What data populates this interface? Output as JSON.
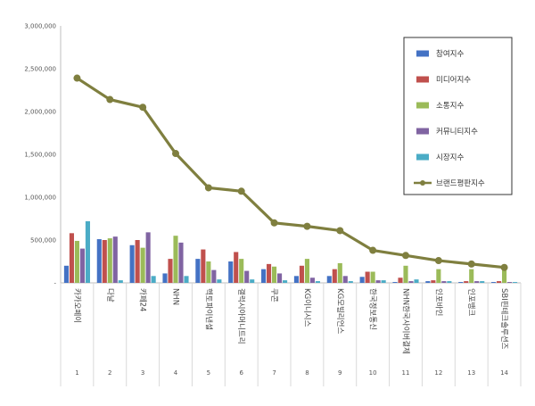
{
  "chart_data": {
    "type": "bar",
    "title": "",
    "xlabel": "",
    "ylabel": "",
    "ylim": [
      0,
      3000000
    ],
    "yticks": [
      0,
      500000,
      1000000,
      1500000,
      2000000,
      2500000,
      3000000
    ],
    "ytick_labels": [
      "-",
      "500,000",
      "1,000,000",
      "1,500,000",
      "2,000,000",
      "2,500,000",
      "3,000,000"
    ],
    "grid": false,
    "legend_position": "top-right",
    "categories": [
      "카카오페이",
      "다날",
      "카페24",
      "NHN",
      "헥토파이낸셜",
      "갤럭시아머니트리",
      "쿠콘",
      "KG이니시스",
      "KG모빌리언스",
      "한국정보통신",
      "NHN한국사이버결제",
      "인포바인",
      "인포뱅크",
      "SBI핀테크솔루션즈"
    ],
    "category_numbers": [
      "1",
      "2",
      "3",
      "4",
      "5",
      "6",
      "7",
      "8",
      "9",
      "10",
      "11",
      "12",
      "13",
      "14"
    ],
    "series": [
      {
        "name": "참여지수",
        "color": "#4472c4",
        "chart_type": "bar",
        "values": [
          200000,
          510000,
          440000,
          110000,
          280000,
          250000,
          160000,
          80000,
          80000,
          70000,
          10000,
          20000,
          10000,
          10000
        ]
      },
      {
        "name": "미디어지수",
        "color": "#c0504d",
        "chart_type": "bar",
        "values": [
          580000,
          500000,
          500000,
          280000,
          390000,
          360000,
          220000,
          200000,
          160000,
          130000,
          60000,
          30000,
          20000,
          20000
        ]
      },
      {
        "name": "소통지수",
        "color": "#9bbb59",
        "chart_type": "bar",
        "values": [
          490000,
          520000,
          410000,
          550000,
          250000,
          280000,
          190000,
          280000,
          230000,
          130000,
          200000,
          160000,
          160000,
          170000
        ]
      },
      {
        "name": "커뮤니티지수",
        "color": "#8064a2",
        "chart_type": "bar",
        "values": [
          400000,
          540000,
          590000,
          470000,
          150000,
          140000,
          110000,
          60000,
          80000,
          30000,
          20000,
          20000,
          20000,
          10000
        ]
      },
      {
        "name": "시장지수",
        "color": "#4bacc6",
        "chart_type": "bar",
        "values": [
          720000,
          30000,
          80000,
          80000,
          40000,
          40000,
          30000,
          20000,
          20000,
          30000,
          40000,
          20000,
          20000,
          10000
        ]
      },
      {
        "name": "브랜드평판지수",
        "color": "#7f7f3f",
        "chart_type": "line",
        "values": [
          2390000,
          2140000,
          2050000,
          1510000,
          1110000,
          1070000,
          700000,
          660000,
          610000,
          380000,
          320000,
          260000,
          220000,
          180000
        ]
      }
    ]
  }
}
